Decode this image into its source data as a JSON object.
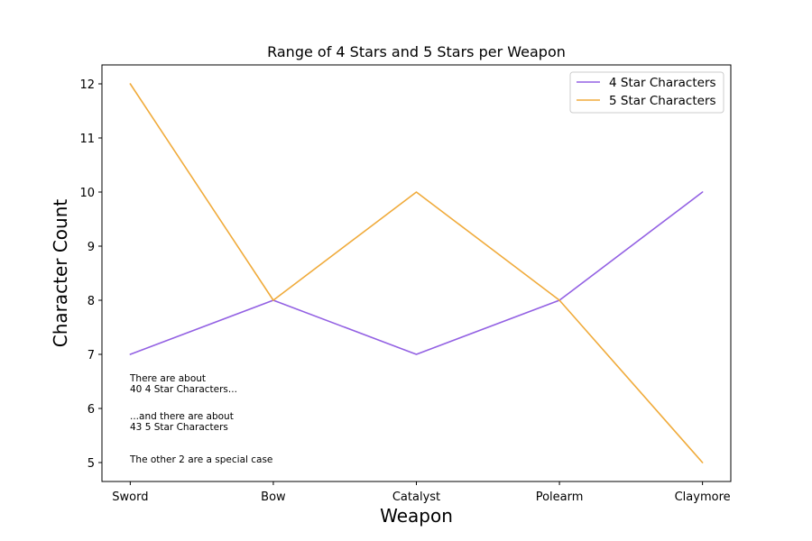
{
  "chart_data": {
    "type": "line",
    "title": "Range of 4 Stars and 5 Stars per Weapon",
    "xlabel": "Weapon",
    "ylabel": "Character Count",
    "categories": [
      "Sword",
      "Bow",
      "Catalyst",
      "Polearm",
      "Claymore"
    ],
    "ylim": [
      4.65,
      12.35
    ],
    "yticks": [
      5,
      6,
      7,
      8,
      9,
      10,
      11,
      12
    ],
    "grid": false,
    "legend_position": "top-right",
    "series": [
      {
        "name": "4 Star Characters",
        "color": "#9361e3",
        "values": [
          7,
          8,
          7,
          8,
          10
        ]
      },
      {
        "name": "5 Star Characters",
        "color": "#f0ab3b",
        "values": [
          12,
          8,
          10,
          8,
          5
        ]
      }
    ],
    "annotations": [
      {
        "lines": [
          "There are about",
          "40 4 Star Characters..."
        ]
      },
      {
        "lines": [
          "...and there are about",
          "43 5 Star Characters"
        ]
      },
      {
        "lines": [
          "The other 2 are a special case"
        ]
      }
    ]
  }
}
